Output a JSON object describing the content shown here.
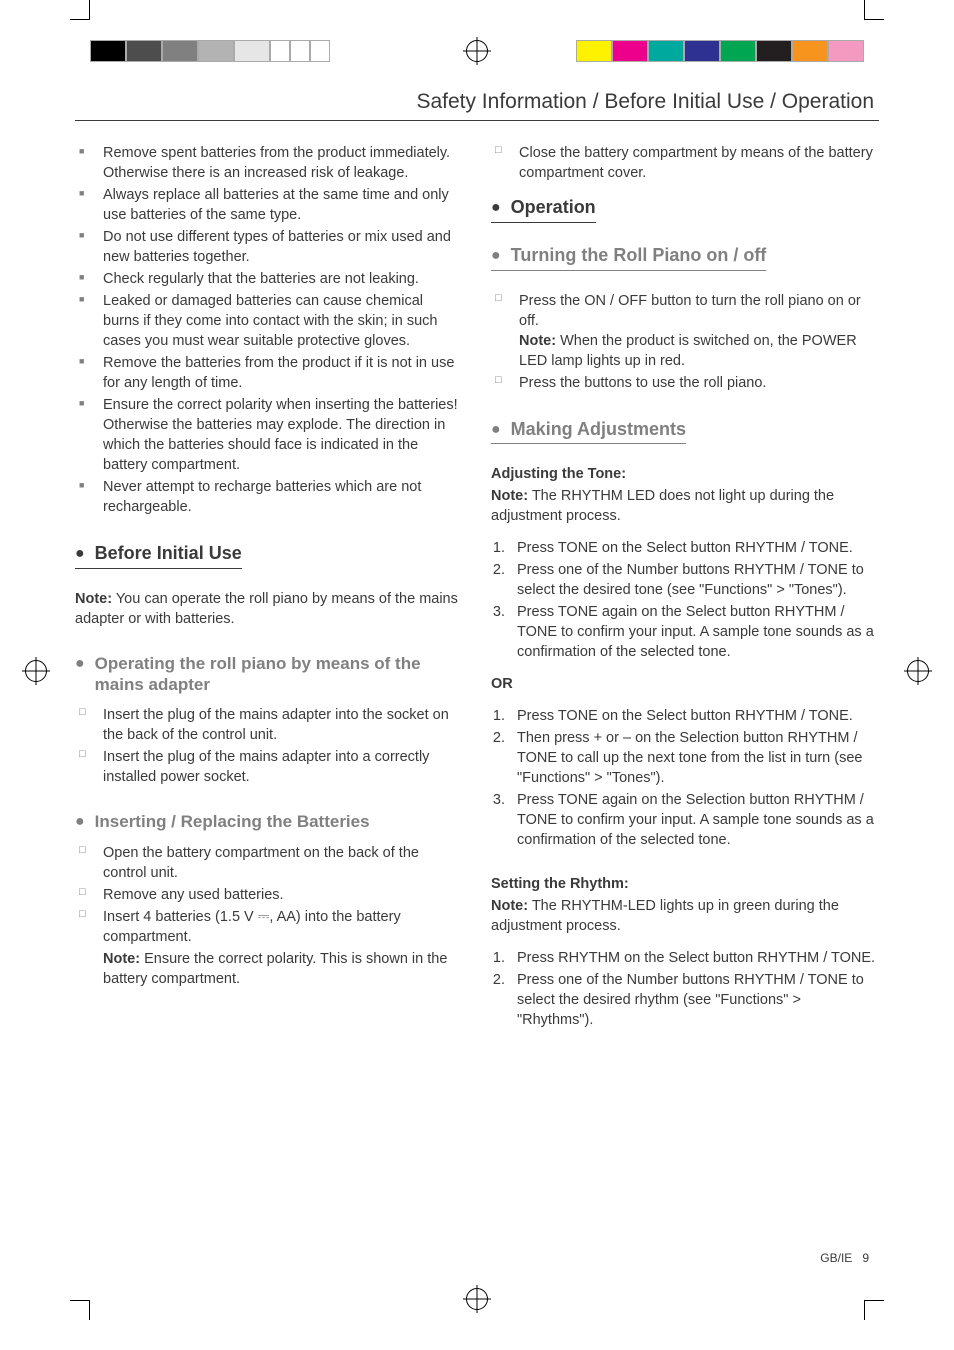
{
  "header": {
    "title": "Safety Information / Before Initial Use / Operation"
  },
  "colorbar_left": [
    "#000000",
    "#4d4d4d",
    "#808080",
    "#b3b3b3",
    "#e6e6e6",
    "#ffffff",
    "#ffffff",
    "#ffffff"
  ],
  "colorbar_right": [
    "#fff200",
    "#ec008c",
    "#00a99d",
    "#2e3192",
    "#00a651",
    "#231f20",
    "#f7941d",
    "#f49ac1"
  ],
  "left_col": {
    "safety_items": [
      "Remove spent batteries from the product immediately. Otherwise there is an increased risk of leakage.",
      "Always replace all batteries at the same time and only use batteries of the same type.",
      "Do not use different types of batteries or mix used and new batteries together.",
      "Check regularly that the batteries are not leaking.",
      "Leaked or damaged batteries can cause chemical burns if they come into contact with the skin; in such cases you must wear suitable protective gloves.",
      "Remove the batteries from the product if it is not in use for any length of time.",
      "Ensure the correct polarity when inserting the batteries! Otherwise the batteries may explode. The direction in which the batteries should face is indicated in the battery compartment.",
      "Never attempt to recharge batteries which are not rechargeable."
    ],
    "before_heading": "Before Initial Use",
    "before_note_bold": "Note:",
    "before_note": " You can operate the roll piano by means of the mains adapter or with batteries.",
    "mains_heading": "Operating the roll piano by means of the mains adapter",
    "mains_items": [
      "Insert the plug of the mains adapter into the socket on the back of the control unit.",
      "Insert the plug of the mains adapter into a correctly installed power socket."
    ],
    "batt_heading": "Inserting / Replacing the Batteries",
    "batt_items": [
      "Open the battery compartment on the back of the control unit.",
      "Remove any used batteries.",
      "Insert 4 batteries (1.5 V ⎓, AA) into the battery compartment."
    ],
    "batt_note_bold": "Note:",
    "batt_note": " Ensure the correct polarity. This is shown in the battery compartment."
  },
  "right_col": {
    "top_item": "Close the battery compartment by means of the battery compartment cover.",
    "op_heading": "Operation",
    "turn_heading": "Turning the Roll Piano on / off",
    "turn_items_1": "Press the ON / OFF button to turn the roll piano on or off.",
    "turn_note_bold": "Note:",
    "turn_note": " When the product is switched on, the POWER LED lamp lights up in red.",
    "turn_items_2": "Press the buttons to use the roll piano.",
    "adj_heading": "Making Adjustments",
    "tone_title": "Adjusting the Tone:",
    "tone_note_bold": "Note:",
    "tone_note": " The RHYTHM LED does not light up during the adjustment process.",
    "tone_steps": [
      "Press TONE on the Select button RHYTHM / TONE.",
      "Press one of the Number buttons RHYTHM / TONE to select the desired tone (see \"Functions\" > \"Tones\").",
      "Press TONE again on the Select button RHYTHM / TONE to confirm your input. A sample tone sounds as a confirmation of the selected tone."
    ],
    "or_label": "OR",
    "tone_steps_b": [
      "Press TONE on the Select button RHYTHM / TONE.",
      "Then press + or – on the Selection button RHYTHM / TONE to call up the next tone from the list in turn (see \"Functions\" > \"Tones\").",
      "Press TONE again on the Selection button RHYTHM / TONE to confirm your input. A sample tone sounds as a confirmation of the selected tone."
    ],
    "rhythm_title": "Setting the Rhythm:",
    "rhythm_note_bold": "Note:",
    "rhythm_note": " The RHYTHM-LED lights up in green during the adjustment process.",
    "rhythm_steps": [
      "Press RHYTHM on the Select button RHYTHM / TONE.",
      "Press one of the Number buttons RHYTHM / TONE to select the desired rhythm (see \"Functions\" > \"Rhythms\")."
    ]
  },
  "footer": {
    "region": "GB/IE",
    "page": "9"
  }
}
